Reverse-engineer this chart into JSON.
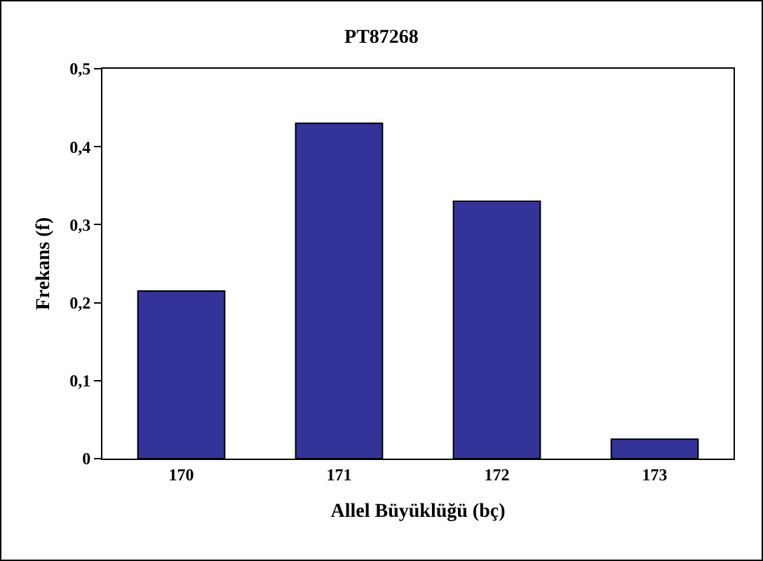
{
  "chart_data": {
    "type": "bar",
    "title": "PT87268",
    "xlabel": "Allel Büyüklüğü (bç)",
    "ylabel": "Frekans (f)",
    "categories": [
      "170",
      "171",
      "172",
      "173"
    ],
    "values": [
      0.215,
      0.43,
      0.33,
      0.025
    ],
    "color": "#333399",
    "ylim": [
      0,
      0.5
    ],
    "yticks": [
      {
        "value": 0,
        "label": "0"
      },
      {
        "value": 0.1,
        "label": "0,1"
      },
      {
        "value": 0.2,
        "label": "0,2"
      },
      {
        "value": 0.3,
        "label": "0,3"
      },
      {
        "value": 0.4,
        "label": "0,4"
      },
      {
        "value": 0.5,
        "label": "0,5"
      }
    ],
    "grid": false,
    "legend": false
  }
}
